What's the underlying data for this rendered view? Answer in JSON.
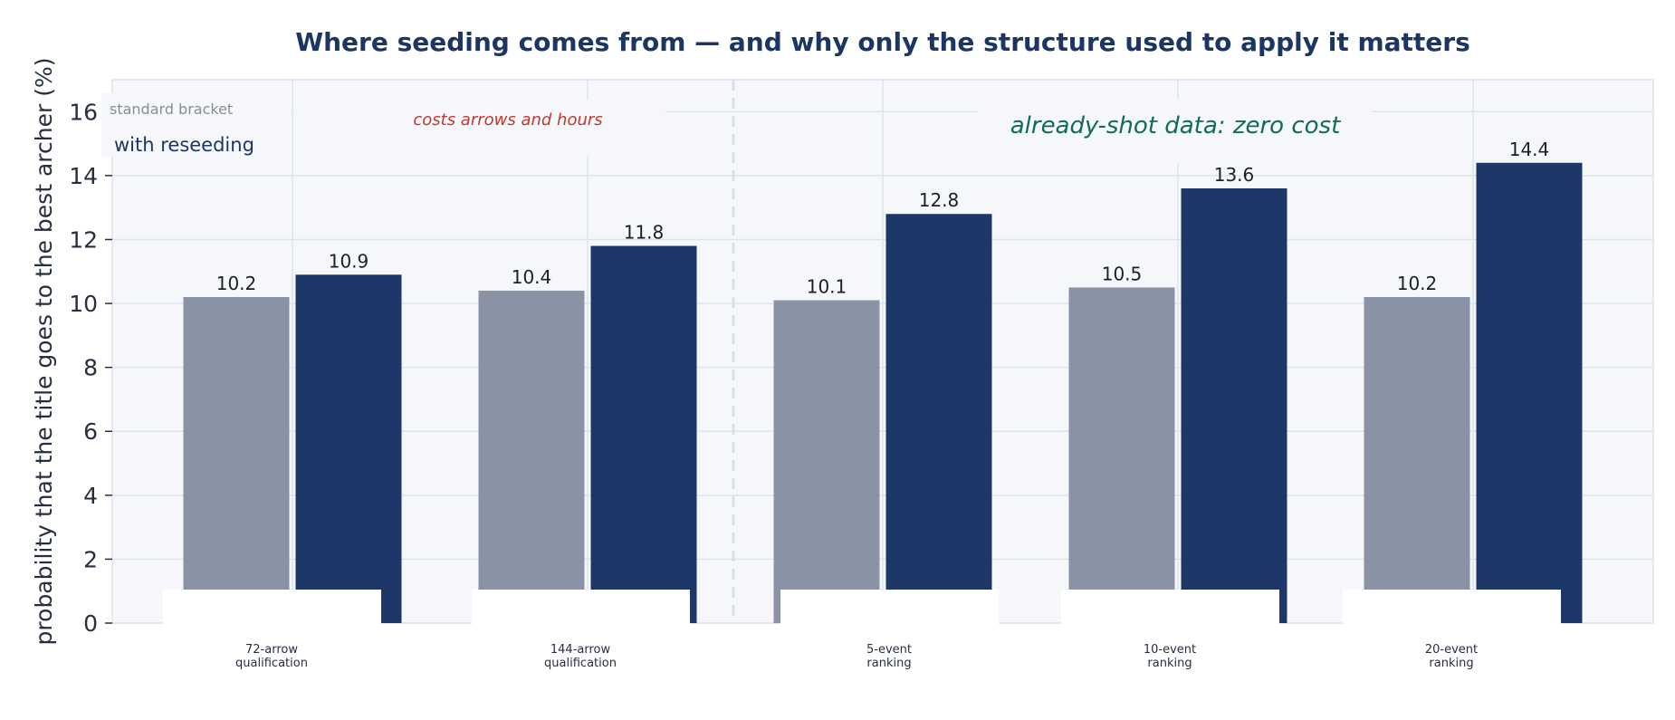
{
  "chart_data": {
    "type": "bar",
    "title": "Where seeding comes from — and why only the structure used to apply it matters",
    "ylabel": "probability that the title goes to the best archer (%)",
    "xlabel": "",
    "ylim": [
      0,
      17
    ],
    "yticks": [
      0,
      2,
      4,
      6,
      8,
      10,
      12,
      14,
      16
    ],
    "grid": true,
    "categories": [
      "72-arrow\nqualification",
      "144-arrow\nqualification",
      "5-event\nranking",
      "10-event\nranking",
      "20-event\nranking"
    ],
    "series": [
      {
        "name": "standard bracket",
        "color": "#8a93a5",
        "values": [
          10.2,
          10.4,
          10.1,
          10.5,
          10.2
        ]
      },
      {
        "name": "with reseeding",
        "color": "#1c3768",
        "values": [
          10.9,
          11.8,
          12.8,
          13.6,
          14.4
        ]
      }
    ],
    "legend": {
      "placement": "top-left",
      "entries": [
        "standard bracket",
        "with reseeding"
      ]
    },
    "annotations": [
      {
        "text": "costs arrows and hours",
        "color": "#c0392b"
      },
      {
        "text": "already-shot data: zero cost",
        "color": "#0f6b5a"
      }
    ],
    "separator": {
      "after_category": 1,
      "style": "dashed"
    }
  }
}
